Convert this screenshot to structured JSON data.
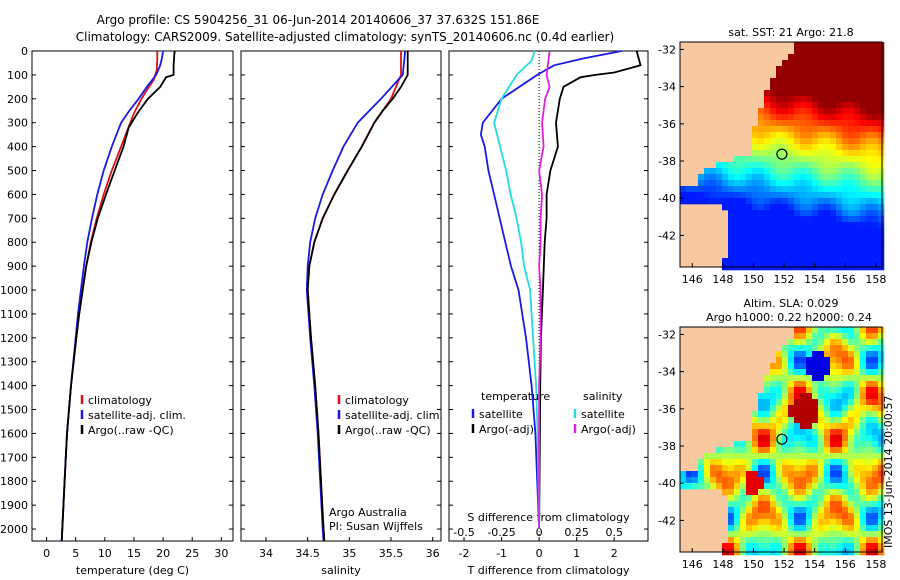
{
  "header": {
    "line1": "Argo profile: CS 5904256_31 06-Jun-2014 20140606_37 37.632S 151.86E",
    "line2": "Climatology: CARS2009. Satellite-adjusted climatology: synTS_20140606.nc (0.4d earlier)"
  },
  "colors": {
    "climatology": "#dd1111",
    "satellite": "#1a1ae6",
    "argo": "#000000",
    "sal_sat": "#22dddd",
    "sal_argo": "#dd22dd",
    "land": "#f8c8a0"
  },
  "depth_ticks": [
    "0",
    "100",
    "200",
    "300",
    "400",
    "500",
    "600",
    "700",
    "800",
    "900",
    "1000",
    "1100",
    "1200",
    "1300",
    "1400",
    "1500",
    "1600",
    "1700",
    "1800",
    "1900",
    "2000"
  ],
  "chart_data": [
    {
      "type": "line",
      "xlabel": "temperature (deg C)",
      "xlim": [
        -2.5,
        32
      ],
      "ylim": [
        0,
        2050
      ],
      "x_ticks": [
        "0",
        "5",
        "10",
        "15",
        "20",
        "25",
        "30"
      ],
      "legend": [
        "climatology",
        "satellite-adj. clim.",
        "Argo(..raw -QC)"
      ],
      "series": [
        {
          "name": "climatology",
          "color_key": "climatology",
          "depth": [
            0,
            40,
            80,
            120,
            160,
            200,
            260,
            330,
            400,
            500,
            600,
            700,
            800,
            900,
            1000,
            1100,
            1200,
            1400,
            1600,
            1800,
            2000,
            2050
          ],
          "values": [
            19,
            19,
            18.9,
            18.4,
            17.3,
            16.3,
            15,
            13.9,
            12.8,
            11.2,
            9.8,
            8.6,
            7.6,
            6.8,
            6.2,
            5.6,
            5.1,
            4.2,
            3.5,
            3.1,
            2.7,
            2.6
          ]
        },
        {
          "name": "satellite-adj. clim.",
          "color_key": "satellite",
          "depth": [
            0,
            30,
            60,
            100,
            150,
            200,
            250,
            300,
            400,
            500,
            600,
            700,
            800,
            900,
            1000,
            1100,
            1200,
            1400,
            1600,
            1800,
            2000,
            2050
          ],
          "values": [
            20,
            19.8,
            19.5,
            18.8,
            17.2,
            15.8,
            14.2,
            12.8,
            11.2,
            9.8,
            8.7,
            7.8,
            7,
            6.4,
            5.9,
            5.4,
            5,
            4.2,
            3.5,
            3.1,
            2.7,
            2.6
          ]
        },
        {
          "name": "Argo(..raw -QC)",
          "color_key": "argo",
          "depth": [
            0,
            20,
            60,
            100,
            110,
            150,
            200,
            260,
            320,
            400,
            500,
            600,
            700,
            800,
            900,
            1000,
            1100,
            1200,
            1400,
            1600,
            1800,
            2000,
            2050
          ],
          "values": [
            22,
            21.9,
            21.8,
            21.8,
            20.5,
            19.5,
            17.4,
            15.6,
            14.1,
            13.2,
            11.7,
            10.2,
            8.8,
            7.7,
            6.8,
            6.2,
            5.6,
            5.1,
            4.2,
            3.5,
            3.1,
            2.7,
            2.6
          ]
        }
      ]
    },
    {
      "type": "line",
      "xlabel": "salinity",
      "xlim": [
        33.7,
        36.1
      ],
      "ylim": [
        0,
        2050
      ],
      "x_ticks": [
        "34",
        "34.5",
        "35",
        "35.5",
        "36"
      ],
      "legend": [
        "climatology",
        "satellite-adj. clim.",
        "Argo(..raw -QC)"
      ],
      "annotation": [
        "Argo Australia",
        "PI: Susan Wijffels"
      ],
      "series": [
        {
          "name": "climatology",
          "color_key": "climatology",
          "depth": [
            0,
            100,
            200,
            300,
            400,
            500,
            600,
            700,
            800,
            900,
            1000,
            1200,
            1400,
            1600,
            1800,
            2000,
            2050
          ],
          "values": [
            35.62,
            35.62,
            35.5,
            35.3,
            35.15,
            34.98,
            34.82,
            34.68,
            34.58,
            34.52,
            34.5,
            34.54,
            34.59,
            34.63,
            34.66,
            34.69,
            34.7
          ]
        },
        {
          "name": "satellite-adj. clim.",
          "color_key": "satellite",
          "depth": [
            0,
            100,
            200,
            300,
            400,
            500,
            600,
            700,
            800,
            900,
            1000,
            1200,
            1400,
            1600,
            1800,
            2000,
            2050
          ],
          "values": [
            35.67,
            35.64,
            35.38,
            35.1,
            34.93,
            34.8,
            34.68,
            34.59,
            34.53,
            34.5,
            34.49,
            34.53,
            34.58,
            34.62,
            34.65,
            34.68,
            34.69
          ]
        },
        {
          "name": "Argo(..raw -QC)",
          "color_key": "argo",
          "depth": [
            0,
            100,
            150,
            200,
            250,
            300,
            400,
            500,
            600,
            700,
            800,
            900,
            1000,
            1200,
            1400,
            1600,
            1800,
            2000,
            2050
          ],
          "values": [
            35.7,
            35.7,
            35.62,
            35.52,
            35.4,
            35.3,
            35.15,
            34.98,
            34.82,
            34.68,
            34.58,
            34.52,
            34.5,
            34.54,
            34.59,
            34.63,
            34.66,
            34.69,
            34.7
          ]
        }
      ]
    },
    {
      "type": "line",
      "xlabel": "T difference from climatology",
      "xlabel2": "S difference from climatology",
      "xlim": [
        -2.4,
        2.9
      ],
      "ylim": [
        0,
        2050
      ],
      "x_ticks": [
        "-2",
        "-1",
        "0",
        "1",
        "2"
      ],
      "x2_ticks": [
        "-0.5",
        "-0.25",
        "0",
        "0.25",
        "0.5"
      ],
      "legend_left_title": "temperature",
      "legend_right_title": "salinity",
      "legend_left": [
        "satellite",
        "Argo(-adj)"
      ],
      "legend_right": [
        "satellite",
        "Argo(-adj)"
      ],
      "series": [
        {
          "name": "T satellite",
          "color_key": "satellite",
          "depth": [
            0,
            30,
            60,
            100,
            200,
            300,
            350,
            400,
            500,
            600,
            700,
            800,
            900,
            1000,
            1200,
            1400,
            1600,
            1800,
            2000
          ],
          "values": [
            2.2,
            1.2,
            0.4,
            -0.05,
            -1.0,
            -1.5,
            -1.55,
            -1.45,
            -1.35,
            -1.2,
            -1.05,
            -0.9,
            -0.75,
            -0.55,
            -0.35,
            -0.2,
            -0.1,
            -0.05,
            0
          ]
        },
        {
          "name": "T Argo",
          "color_key": "argo",
          "depth": [
            0,
            60,
            90,
            100,
            110,
            150,
            200,
            300,
            400,
            500,
            600,
            700,
            800,
            1000,
            1200,
            1400,
            1600,
            1800,
            2000
          ],
          "values": [
            2.6,
            2.7,
            2.0,
            1.5,
            1.1,
            0.65,
            0.55,
            0.45,
            0.5,
            0.3,
            0.2,
            0.2,
            0.15,
            0.1,
            0.05,
            0.03,
            0.02,
            0.01,
            0
          ]
        },
        {
          "name": "S satellite",
          "color_key": "sal_sat",
          "depth": [
            0,
            40,
            100,
            150,
            200,
            300,
            400,
            500,
            600,
            700,
            800,
            900,
            1000,
            1200,
            1400,
            1600,
            1800,
            2000
          ],
          "values": [
            -0.03,
            -0.05,
            -0.15,
            -0.2,
            -0.25,
            -0.3,
            -0.26,
            -0.22,
            -0.19,
            -0.15,
            -0.12,
            -0.1,
            -0.06,
            -0.04,
            -0.02,
            -0.01,
            -0.005,
            0
          ]
        },
        {
          "name": "S Argo",
          "color_key": "sal_argo",
          "depth": [
            0,
            50,
            100,
            150,
            200,
            300,
            400,
            500,
            600,
            700,
            800,
            900,
            1000,
            1200,
            1400,
            1600,
            1800,
            2000
          ],
          "values": [
            0.07,
            0.06,
            0.05,
            0.07,
            0.04,
            0.02,
            0.03,
            0,
            0.02,
            0.01,
            0.01,
            0,
            0.01,
            0.01,
            0,
            0,
            0,
            0
          ]
        }
      ]
    }
  ],
  "maps": {
    "sst_title": "sat. SST: 21 Argo: 21.8",
    "sla_title1": "Altim. SLA: 0.029",
    "sla_title2": "Argo h1000: 0.22 h2000: 0.24",
    "lat_ticks": [
      "-32",
      "-34",
      "-36",
      "-38",
      "-40",
      "-42"
    ],
    "lon_ticks": [
      "146",
      "148",
      "150",
      "152",
      "154",
      "156",
      "158"
    ],
    "lon_range": [
      145.2,
      158.4
    ],
    "lat_range": [
      -31.6,
      -43.7
    ],
    "profile_lon": 151.86,
    "profile_lat": -37.632
  },
  "footer": {
    "side_text": "IMOS 13-Jun-2014 20:00:57"
  }
}
